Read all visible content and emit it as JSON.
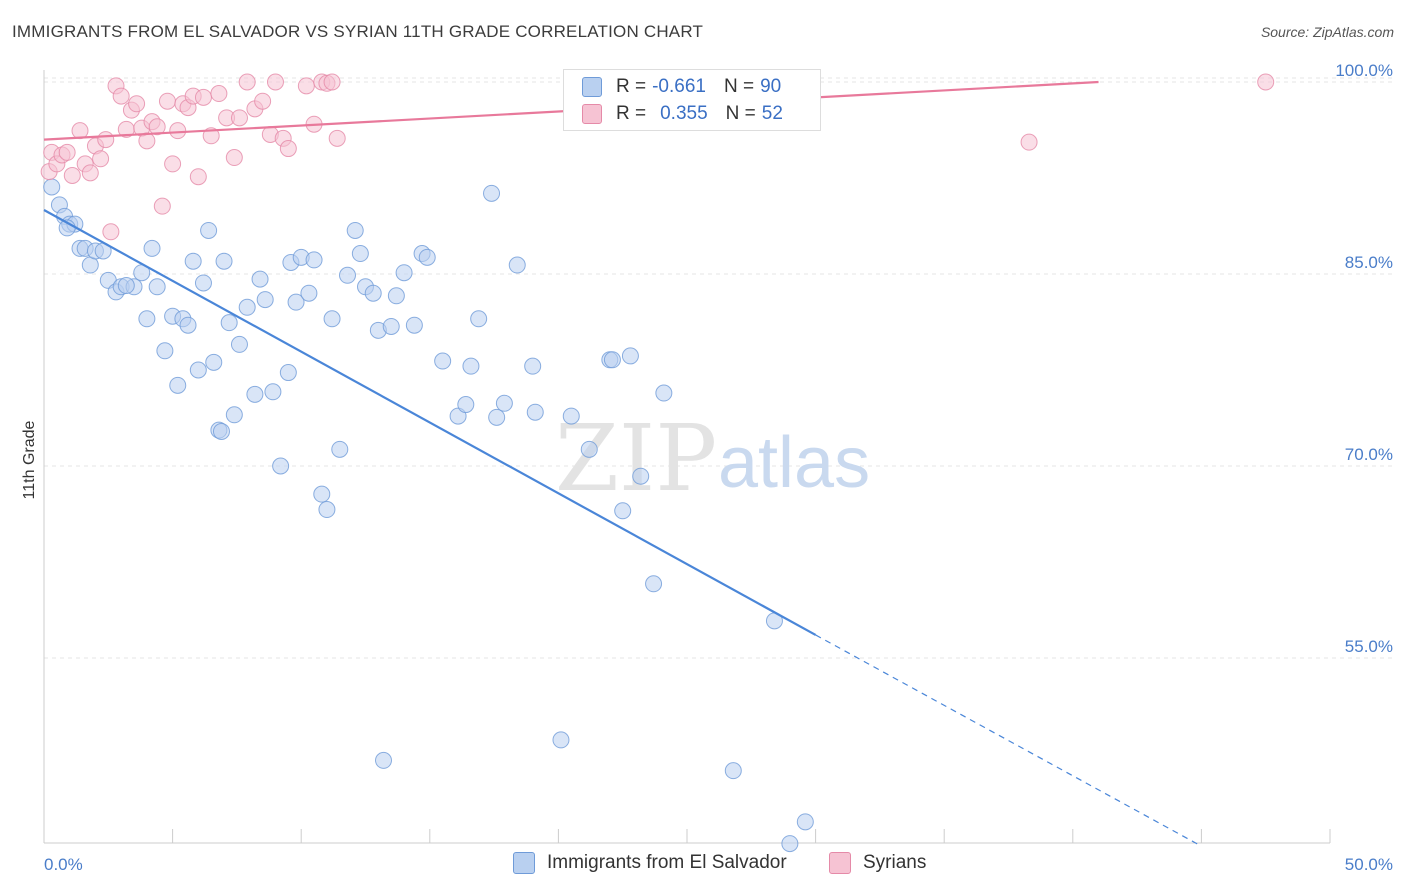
{
  "header": {
    "title": "IMMIGRANTS FROM EL SALVADOR VS SYRIAN 11TH GRADE CORRELATION CHART",
    "source": "Source: ZipAtlas.com"
  },
  "watermark": {
    "zip": "ZIP",
    "atlas": "atlas"
  },
  "legend": {
    "rows": [
      {
        "r_label": "R =",
        "r_value": "-0.661",
        "n_label": "N =",
        "n_value": "90"
      },
      {
        "r_label": "R =",
        "r_value": "0.355",
        "n_label": "N =",
        "n_value": "52"
      }
    ]
  },
  "bottom_legend": {
    "s1": "Immigrants from El Salvador",
    "s2": "Syrians"
  },
  "colors": {
    "blue": "#4a86d8",
    "blue_fill": "#b9d0f0",
    "pink": "#e8799b",
    "pink_fill": "#f6c3d3",
    "axis_text": "#4a7dc9"
  },
  "chart_data": {
    "type": "scatter",
    "title": "IMMIGRANTS FROM EL SALVADOR VS SYRIAN 11TH GRADE CORRELATION CHART",
    "xlabel": "",
    "ylabel": "11th Grade",
    "xlim": [
      0,
      50
    ],
    "ylim": [
      40,
      101
    ],
    "x_tick_labels": [
      "0.0%",
      "50.0%"
    ],
    "y_ticks": [
      55,
      70,
      85,
      100
    ],
    "y_tick_labels": [
      "55.0%",
      "70.0%",
      "85.0%",
      "100.0%"
    ],
    "grid": true,
    "series": [
      {
        "name": "Immigrants from El Salvador",
        "color": "#4a86d8",
        "trend": {
          "x": [
            0,
            30
          ],
          "y": [
            90.0,
            56.8
          ],
          "dashed_to": [
            45,
            40.3
          ]
        },
        "points": [
          [
            0.3,
            91.8
          ],
          [
            0.6,
            90.4
          ],
          [
            0.8,
            89.5
          ],
          [
            1.0,
            88.9
          ],
          [
            1.2,
            88.9
          ],
          [
            1.4,
            87.0
          ],
          [
            1.6,
            87.0
          ],
          [
            1.8,
            85.7
          ],
          [
            2.0,
            86.8
          ],
          [
            2.3,
            86.8
          ],
          [
            2.5,
            84.5
          ],
          [
            2.8,
            83.6
          ],
          [
            3.0,
            84.0
          ],
          [
            3.5,
            84.0
          ],
          [
            3.8,
            85.1
          ],
          [
            4.0,
            81.5
          ],
          [
            4.2,
            87.0
          ],
          [
            4.4,
            84.0
          ],
          [
            4.7,
            79.0
          ],
          [
            5.0,
            81.7
          ],
          [
            5.2,
            76.3
          ],
          [
            5.4,
            81.5
          ],
          [
            5.6,
            81.0
          ],
          [
            5.8,
            86.0
          ],
          [
            6.0,
            77.5
          ],
          [
            6.2,
            84.3
          ],
          [
            6.4,
            88.4
          ],
          [
            6.6,
            78.1
          ],
          [
            6.8,
            72.8
          ],
          [
            7.0,
            86.0
          ],
          [
            7.2,
            81.2
          ],
          [
            7.4,
            74.0
          ],
          [
            7.6,
            79.5
          ],
          [
            7.9,
            82.4
          ],
          [
            8.2,
            75.6
          ],
          [
            8.4,
            84.6
          ],
          [
            8.6,
            83.0
          ],
          [
            8.9,
            75.8
          ],
          [
            9.2,
            70.0
          ],
          [
            9.5,
            77.3
          ],
          [
            9.6,
            85.9
          ],
          [
            9.8,
            82.8
          ],
          [
            10.0,
            86.3
          ],
          [
            10.3,
            83.5
          ],
          [
            10.5,
            86.1
          ],
          [
            10.8,
            67.8
          ],
          [
            11.0,
            66.6
          ],
          [
            11.2,
            81.5
          ],
          [
            11.5,
            71.3
          ],
          [
            11.8,
            84.9
          ],
          [
            12.1,
            88.4
          ],
          [
            12.3,
            86.6
          ],
          [
            12.5,
            84.0
          ],
          [
            12.8,
            83.5
          ],
          [
            13.0,
            80.6
          ],
          [
            13.2,
            47.0
          ],
          [
            13.5,
            80.9
          ],
          [
            13.7,
            83.3
          ],
          [
            14.0,
            85.1
          ],
          [
            14.4,
            81.0
          ],
          [
            14.7,
            86.6
          ],
          [
            14.9,
            86.3
          ],
          [
            15.5,
            78.2
          ],
          [
            16.1,
            73.9
          ],
          [
            16.4,
            74.8
          ],
          [
            16.6,
            77.8
          ],
          [
            16.9,
            81.5
          ],
          [
            17.4,
            91.3
          ],
          [
            17.6,
            73.8
          ],
          [
            17.9,
            74.9
          ],
          [
            18.4,
            85.7
          ],
          [
            19.0,
            77.8
          ],
          [
            19.1,
            74.2
          ],
          [
            20.1,
            48.6
          ],
          [
            21.2,
            71.3
          ],
          [
            22.0,
            78.3
          ],
          [
            22.1,
            78.3
          ],
          [
            22.5,
            66.5
          ],
          [
            22.8,
            78.6
          ],
          [
            23.2,
            69.2
          ],
          [
            23.7,
            60.8
          ],
          [
            24.1,
            75.7
          ],
          [
            26.8,
            46.2
          ],
          [
            28.4,
            57.9
          ],
          [
            29.0,
            40.5
          ],
          [
            29.6,
            42.2
          ],
          [
            0.9,
            88.6
          ],
          [
            3.2,
            84.1
          ],
          [
            6.9,
            72.7
          ],
          [
            20.5,
            73.9
          ]
        ]
      },
      {
        "name": "Syrians",
        "color": "#e8799b",
        "trend": {
          "x": [
            0,
            41
          ],
          "y": [
            95.5,
            100.0
          ]
        },
        "points": [
          [
            0.2,
            93.0
          ],
          [
            0.3,
            94.5
          ],
          [
            0.5,
            93.6
          ],
          [
            0.7,
            94.3
          ],
          [
            0.9,
            94.5
          ],
          [
            1.1,
            92.7
          ],
          [
            1.4,
            96.2
          ],
          [
            1.6,
            93.6
          ],
          [
            1.8,
            92.9
          ],
          [
            2.0,
            95.0
          ],
          [
            2.2,
            94.0
          ],
          [
            2.4,
            95.5
          ],
          [
            2.6,
            88.3
          ],
          [
            2.8,
            99.7
          ],
          [
            3.0,
            98.9
          ],
          [
            3.2,
            96.3
          ],
          [
            3.4,
            97.8
          ],
          [
            3.6,
            98.3
          ],
          [
            3.8,
            96.4
          ],
          [
            4.0,
            95.4
          ],
          [
            4.2,
            96.9
          ],
          [
            4.4,
            96.5
          ],
          [
            4.6,
            90.3
          ],
          [
            4.8,
            98.5
          ],
          [
            5.0,
            93.6
          ],
          [
            5.2,
            96.2
          ],
          [
            5.4,
            98.3
          ],
          [
            5.6,
            98.0
          ],
          [
            5.8,
            98.9
          ],
          [
            6.0,
            92.6
          ],
          [
            6.2,
            98.8
          ],
          [
            6.5,
            95.8
          ],
          [
            6.8,
            99.1
          ],
          [
            7.1,
            97.2
          ],
          [
            7.4,
            94.1
          ],
          [
            7.6,
            97.2
          ],
          [
            7.9,
            100.0
          ],
          [
            8.2,
            97.9
          ],
          [
            8.5,
            98.5
          ],
          [
            8.8,
            95.9
          ],
          [
            9.0,
            100.0
          ],
          [
            9.3,
            95.6
          ],
          [
            9.5,
            94.8
          ],
          [
            10.2,
            99.7
          ],
          [
            10.5,
            96.7
          ],
          [
            10.8,
            100.0
          ],
          [
            11.0,
            99.9
          ],
          [
            11.2,
            100.0
          ],
          [
            11.4,
            95.6
          ],
          [
            27.8,
            100.0
          ],
          [
            38.3,
            95.3
          ],
          [
            47.5,
            100.0
          ]
        ]
      }
    ]
  }
}
